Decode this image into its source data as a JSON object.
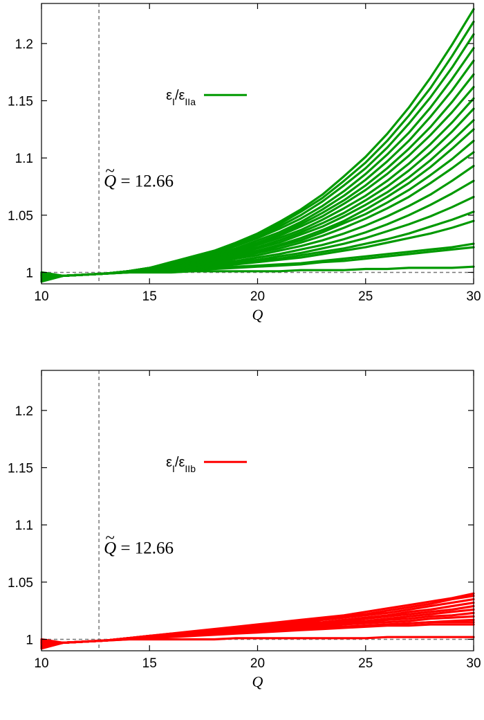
{
  "chart_data": [
    {
      "type": "line",
      "xlabel": "Q",
      "ylabel": "",
      "xlim": [
        10,
        30
      ],
      "ylim": [
        0.99,
        1.235
      ],
      "xticks": [
        10,
        15,
        20,
        25,
        30
      ],
      "yticks": [
        1,
        1.05,
        1.1,
        1.15,
        1.2
      ],
      "xtick_labels": [
        "10",
        "15",
        "20",
        "25",
        "30"
      ],
      "ytick_labels": [
        "1",
        "1.05",
        "1.1",
        "1.15",
        "1.2"
      ],
      "grid": false,
      "legend_position": "upper-left",
      "legend": {
        "prefix": "ε",
        "num_sub": "I",
        "slash": "/ε",
        "den_sub": "IIa",
        "color": "#009900"
      },
      "annotation": {
        "symbol": "Q",
        "text": " = 12.66"
      },
      "reference_lines": {
        "vertical_x": 12.66,
        "horizontal_y": 1
      },
      "x": [
        10,
        11,
        12,
        13,
        14,
        15,
        16,
        17,
        18,
        19,
        20,
        21,
        22,
        23,
        24,
        25,
        26,
        27,
        28,
        29,
        30
      ],
      "series": [
        {
          "values": [
            0.992,
            0.997,
            0.998,
            0.999,
            1.0,
            1.0,
            1.0,
            1.001,
            1.001,
            1.001,
            1.001,
            1.001,
            1.002,
            1.002,
            1.002,
            1.003,
            1.003,
            1.004,
            1.004,
            1.004,
            1.005
          ]
        },
        {
          "values": [
            0.993,
            0.997,
            0.998,
            0.999,
            1.0,
            1.001,
            1.001,
            1.002,
            1.003,
            1.004,
            1.005,
            1.006,
            1.007,
            1.009,
            1.01,
            1.012,
            1.014,
            1.016,
            1.018,
            1.02,
            1.022
          ]
        },
        {
          "values": [
            0.994,
            0.997,
            0.998,
            0.999,
            1.0,
            1.001,
            1.002,
            1.003,
            1.004,
            1.005,
            1.006,
            1.007,
            1.008,
            1.01,
            1.012,
            1.014,
            1.016,
            1.018,
            1.02,
            1.022,
            1.025
          ]
        },
        {
          "values": [
            0.995,
            0.997,
            0.998,
            0.999,
            1.0,
            1.001,
            1.002,
            1.003,
            1.005,
            1.007,
            1.009,
            1.011,
            1.013,
            1.016,
            1.019,
            1.022,
            1.026,
            1.03,
            1.034,
            1.039,
            1.045
          ]
        },
        {
          "values": [
            0.995,
            0.997,
            0.998,
            0.999,
            1.001,
            1.002,
            1.003,
            1.004,
            1.006,
            1.008,
            1.01,
            1.012,
            1.015,
            1.018,
            1.021,
            1.025,
            1.029,
            1.034,
            1.04,
            1.046,
            1.053
          ]
        },
        {
          "values": [
            0.996,
            0.997,
            0.998,
            0.999,
            1.001,
            1.002,
            1.003,
            1.005,
            1.007,
            1.009,
            1.011,
            1.014,
            1.017,
            1.021,
            1.025,
            1.03,
            1.036,
            1.042,
            1.049,
            1.057,
            1.066
          ]
        },
        {
          "values": [
            0.996,
            0.997,
            0.998,
            0.999,
            1.001,
            1.002,
            1.004,
            1.006,
            1.008,
            1.01,
            1.013,
            1.016,
            1.02,
            1.024,
            1.029,
            1.035,
            1.042,
            1.05,
            1.059,
            1.069,
            1.08
          ]
        },
        {
          "values": [
            0.996,
            0.997,
            0.998,
            0.999,
            1.001,
            1.002,
            1.004,
            1.006,
            1.009,
            1.012,
            1.015,
            1.019,
            1.023,
            1.028,
            1.034,
            1.041,
            1.049,
            1.058,
            1.068,
            1.08,
            1.093
          ]
        },
        {
          "values": [
            0.997,
            0.997,
            0.998,
            0.999,
            1.001,
            1.003,
            1.005,
            1.007,
            1.01,
            1.013,
            1.017,
            1.021,
            1.026,
            1.032,
            1.039,
            1.047,
            1.056,
            1.066,
            1.078,
            1.091,
            1.105
          ]
        },
        {
          "values": [
            0.997,
            0.997,
            0.998,
            0.999,
            1.001,
            1.003,
            1.005,
            1.008,
            1.011,
            1.014,
            1.018,
            1.023,
            1.028,
            1.035,
            1.043,
            1.051,
            1.061,
            1.072,
            1.085,
            1.099,
            1.115
          ]
        },
        {
          "values": [
            0.997,
            0.997,
            0.998,
            0.999,
            1.001,
            1.003,
            1.005,
            1.008,
            1.011,
            1.015,
            1.019,
            1.024,
            1.03,
            1.037,
            1.045,
            1.055,
            1.066,
            1.078,
            1.092,
            1.108,
            1.125
          ]
        },
        {
          "values": [
            0.997,
            0.997,
            0.998,
            0.999,
            1.001,
            1.003,
            1.006,
            1.009,
            1.012,
            1.016,
            1.021,
            1.026,
            1.033,
            1.04,
            1.049,
            1.059,
            1.07,
            1.083,
            1.098,
            1.115,
            1.133
          ]
        },
        {
          "values": [
            0.998,
            0.997,
            0.998,
            0.999,
            1.001,
            1.003,
            1.006,
            1.009,
            1.013,
            1.017,
            1.022,
            1.028,
            1.035,
            1.043,
            1.052,
            1.063,
            1.075,
            1.089,
            1.105,
            1.123,
            1.143
          ]
        },
        {
          "values": [
            0.998,
            0.997,
            0.998,
            0.999,
            1.001,
            1.003,
            1.006,
            1.01,
            1.014,
            1.018,
            1.024,
            1.03,
            1.037,
            1.046,
            1.056,
            1.067,
            1.08,
            1.095,
            1.112,
            1.131,
            1.152
          ]
        },
        {
          "values": [
            0.998,
            0.997,
            0.998,
            0.999,
            1.001,
            1.004,
            1.007,
            1.01,
            1.014,
            1.019,
            1.025,
            1.032,
            1.04,
            1.049,
            1.06,
            1.072,
            1.086,
            1.102,
            1.12,
            1.14,
            1.162
          ]
        },
        {
          "values": [
            0.998,
            0.997,
            0.998,
            0.999,
            1.001,
            1.004,
            1.007,
            1.011,
            1.015,
            1.02,
            1.026,
            1.033,
            1.042,
            1.052,
            1.063,
            1.076,
            1.091,
            1.108,
            1.127,
            1.149,
            1.173
          ]
        },
        {
          "values": [
            0.999,
            0.997,
            0.998,
            0.999,
            1.001,
            1.004,
            1.007,
            1.011,
            1.016,
            1.021,
            1.028,
            1.035,
            1.044,
            1.055,
            1.067,
            1.081,
            1.097,
            1.115,
            1.136,
            1.159,
            1.185
          ]
        },
        {
          "values": [
            0.999,
            0.997,
            0.998,
            0.999,
            1.001,
            1.004,
            1.008,
            1.012,
            1.017,
            1.023,
            1.03,
            1.038,
            1.047,
            1.058,
            1.071,
            1.086,
            1.103,
            1.122,
            1.144,
            1.169,
            1.196
          ]
        },
        {
          "values": [
            0.999,
            0.997,
            0.998,
            0.999,
            1.001,
            1.004,
            1.008,
            1.012,
            1.017,
            1.024,
            1.031,
            1.04,
            1.05,
            1.062,
            1.076,
            1.091,
            1.109,
            1.13,
            1.153,
            1.179,
            1.208
          ]
        },
        {
          "values": [
            1.0,
            0.997,
            0.998,
            0.999,
            1.001,
            1.004,
            1.008,
            1.013,
            1.018,
            1.025,
            1.033,
            1.042,
            1.053,
            1.065,
            1.08,
            1.096,
            1.115,
            1.137,
            1.161,
            1.189,
            1.219
          ]
        },
        {
          "values": [
            1.0,
            0.997,
            0.998,
            0.999,
            1.001,
            1.004,
            1.009,
            1.014,
            1.019,
            1.026,
            1.034,
            1.044,
            1.055,
            1.068,
            1.084,
            1.101,
            1.121,
            1.144,
            1.17,
            1.199,
            1.23
          ]
        }
      ]
    },
    {
      "type": "line",
      "xlabel": "Q",
      "ylabel": "",
      "xlim": [
        10,
        30
      ],
      "ylim": [
        0.99,
        1.235
      ],
      "xticks": [
        10,
        15,
        20,
        25,
        30
      ],
      "yticks": [
        1,
        1.05,
        1.1,
        1.15,
        1.2
      ],
      "xtick_labels": [
        "10",
        "15",
        "20",
        "25",
        "30"
      ],
      "ytick_labels": [
        "1",
        "1.05",
        "1.1",
        "1.15",
        "1.2"
      ],
      "grid": false,
      "legend_position": "upper-left",
      "legend": {
        "prefix": "ε",
        "num_sub": "I",
        "slash": "/ε",
        "den_sub": "IIb",
        "color": "#ff0000"
      },
      "annotation": {
        "symbol": "Q",
        "text": " = 12.66"
      },
      "reference_lines": {
        "vertical_x": 12.66,
        "horizontal_y": 1
      },
      "x": [
        10,
        11,
        12,
        13,
        14,
        15,
        16,
        17,
        18,
        19,
        20,
        21,
        22,
        23,
        24,
        25,
        26,
        27,
        28,
        29,
        30
      ],
      "series": [
        {
          "values": [
            0.992,
            0.997,
            0.998,
            0.999,
            1.0,
            1.0,
            1.0,
            1.0,
            1.0,
            1.001,
            1.001,
            1.001,
            1.001,
            1.001,
            1.001,
            1.001,
            1.002,
            1.002,
            1.002,
            1.002,
            1.002
          ]
        },
        {
          "values": [
            0.993,
            0.997,
            0.998,
            0.999,
            1.0,
            1.001,
            1.002,
            1.003,
            1.004,
            1.005,
            1.006,
            1.007,
            1.008,
            1.009,
            1.01,
            1.011,
            1.012,
            1.012,
            1.013,
            1.013,
            1.013
          ]
        },
        {
          "values": [
            0.994,
            0.997,
            0.998,
            0.999,
            1.001,
            1.002,
            1.003,
            1.004,
            1.005,
            1.006,
            1.007,
            1.008,
            1.009,
            1.01,
            1.011,
            1.012,
            1.013,
            1.014,
            1.015,
            1.015,
            1.015
          ]
        },
        {
          "values": [
            0.995,
            0.997,
            0.998,
            0.999,
            1.001,
            1.002,
            1.003,
            1.004,
            1.005,
            1.006,
            1.007,
            1.008,
            1.009,
            1.01,
            1.011,
            1.012,
            1.013,
            1.014,
            1.015,
            1.016,
            1.017
          ]
        },
        {
          "values": [
            0.996,
            0.997,
            0.998,
            0.999,
            1.001,
            1.002,
            1.003,
            1.004,
            1.006,
            1.007,
            1.008,
            1.009,
            1.01,
            1.011,
            1.013,
            1.014,
            1.015,
            1.016,
            1.018,
            1.019,
            1.02
          ]
        },
        {
          "values": [
            0.996,
            0.997,
            0.998,
            0.999,
            1.001,
            1.002,
            1.003,
            1.005,
            1.006,
            1.007,
            1.008,
            1.01,
            1.011,
            1.012,
            1.014,
            1.015,
            1.017,
            1.018,
            1.02,
            1.021,
            1.023
          ]
        },
        {
          "values": [
            0.997,
            0.997,
            0.998,
            0.999,
            1.001,
            1.002,
            1.004,
            1.005,
            1.006,
            1.008,
            1.009,
            1.01,
            1.012,
            1.013,
            1.015,
            1.016,
            1.018,
            1.02,
            1.022,
            1.024,
            1.026
          ]
        },
        {
          "values": [
            0.997,
            0.997,
            0.998,
            0.999,
            1.001,
            1.002,
            1.004,
            1.005,
            1.007,
            1.008,
            1.01,
            1.011,
            1.013,
            1.014,
            1.016,
            1.018,
            1.02,
            1.022,
            1.024,
            1.026,
            1.029
          ]
        },
        {
          "values": [
            0.998,
            0.997,
            0.998,
            0.999,
            1.001,
            1.003,
            1.004,
            1.006,
            1.007,
            1.009,
            1.01,
            1.012,
            1.014,
            1.015,
            1.017,
            1.019,
            1.021,
            1.024,
            1.026,
            1.029,
            1.032
          ]
        },
        {
          "values": [
            0.998,
            0.997,
            0.998,
            0.999,
            1.001,
            1.003,
            1.004,
            1.006,
            1.008,
            1.009,
            1.011,
            1.013,
            1.015,
            1.017,
            1.019,
            1.021,
            1.023,
            1.026,
            1.029,
            1.032,
            1.035
          ]
        },
        {
          "values": [
            0.999,
            0.997,
            0.998,
            0.999,
            1.001,
            1.003,
            1.005,
            1.006,
            1.008,
            1.01,
            1.012,
            1.014,
            1.016,
            1.018,
            1.02,
            1.022,
            1.025,
            1.028,
            1.031,
            1.035,
            1.038
          ]
        },
        {
          "values": [
            1.0,
            0.997,
            0.998,
            0.999,
            1.001,
            1.003,
            1.005,
            1.007,
            1.009,
            1.011,
            1.013,
            1.015,
            1.017,
            1.019,
            1.021,
            1.024,
            1.027,
            1.03,
            1.033,
            1.036,
            1.04
          ]
        }
      ]
    }
  ]
}
